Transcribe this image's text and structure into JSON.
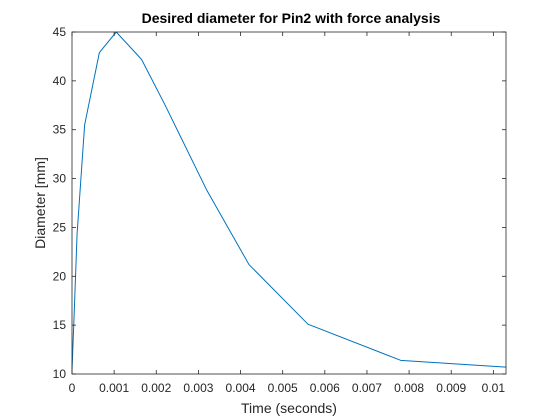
{
  "chart_data": {
    "type": "line",
    "title": "Desired diameter for Pin2 with force analysis",
    "xlabel": "Time (seconds)",
    "ylabel": "Diameter [mm]",
    "xlim": [
      0,
      0.0103
    ],
    "ylim": [
      10,
      45
    ],
    "x_ticks": [
      0,
      0.001,
      0.002,
      0.003,
      0.004,
      0.005,
      0.006,
      0.007,
      0.008,
      0.009,
      0.01
    ],
    "x_tick_labels": [
      "0",
      "0.001",
      "0.002",
      "0.003",
      "0.004",
      "0.005",
      "0.006",
      "0.007",
      "0.008",
      "0.009",
      "0.01"
    ],
    "y_ticks": [
      10,
      15,
      20,
      25,
      30,
      35,
      40,
      45
    ],
    "y_tick_labels": [
      "10",
      "15",
      "20",
      "25",
      "30",
      "35",
      "40",
      "45"
    ],
    "grid": false,
    "box": true,
    "series": [
      {
        "color": "#0072BD",
        "x": [
          0,
          5e-05,
          0.00012,
          0.0003,
          0.00065,
          0.00105,
          0.00165,
          0.0022,
          0.0032,
          0.0042,
          0.0056,
          0.0078,
          0.0103
        ],
        "y": [
          10.4,
          16.0,
          24.3,
          35.5,
          42.9,
          45.0,
          42.2,
          37.6,
          28.8,
          21.2,
          15.1,
          11.4,
          10.7
        ]
      }
    ]
  }
}
